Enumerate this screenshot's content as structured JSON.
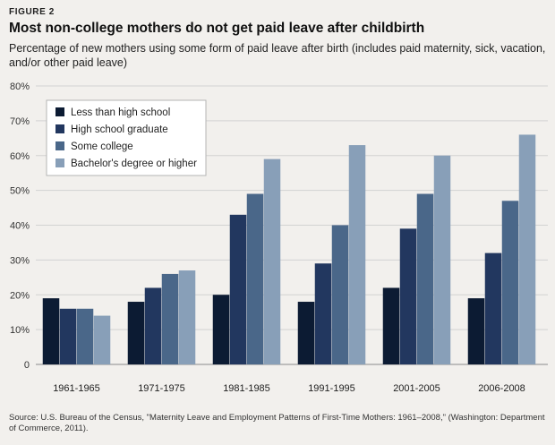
{
  "figure_label": "FIGURE 2",
  "chart_data": {
    "type": "bar",
    "title": "Most non-college mothers do not get paid leave after childbirth",
    "subtitle": "Percentage of new mothers using some form of paid leave after birth (includes paid maternity, sick, vacation, and/or other paid leave)",
    "categories": [
      "1961-1965",
      "1971-1975",
      "1981-1985",
      "1991-1995",
      "2001-2005",
      "2006-2008"
    ],
    "series": [
      {
        "name": "Less than high school",
        "color": "#0c1b33",
        "values": [
          19,
          18,
          20,
          18,
          22,
          19
        ]
      },
      {
        "name": "High school graduate",
        "color": "#22375f",
        "values": [
          16,
          22,
          43,
          29,
          39,
          32
        ]
      },
      {
        "name": "Some college",
        "color": "#4a6789",
        "values": [
          16,
          26,
          49,
          40,
          49,
          47
        ]
      },
      {
        "name": "Bachelor's degree or higher",
        "color": "#889fb8",
        "values": [
          14,
          27,
          59,
          63,
          60,
          66
        ]
      }
    ],
    "yticks": [
      "0",
      "10%",
      "20%",
      "30%",
      "40%",
      "50%",
      "60%",
      "70%",
      "80%"
    ],
    "ylim": [
      0,
      80
    ],
    "xlabel": "",
    "ylabel": "",
    "grid": true,
    "legend": "top-left"
  },
  "source": "Source: U.S. Bureau of the Census, \"Maternity Leave and Employment Patterns of First-Time Mothers: 1961–2008,\" (Washington: Department of Commerce, 2011)."
}
